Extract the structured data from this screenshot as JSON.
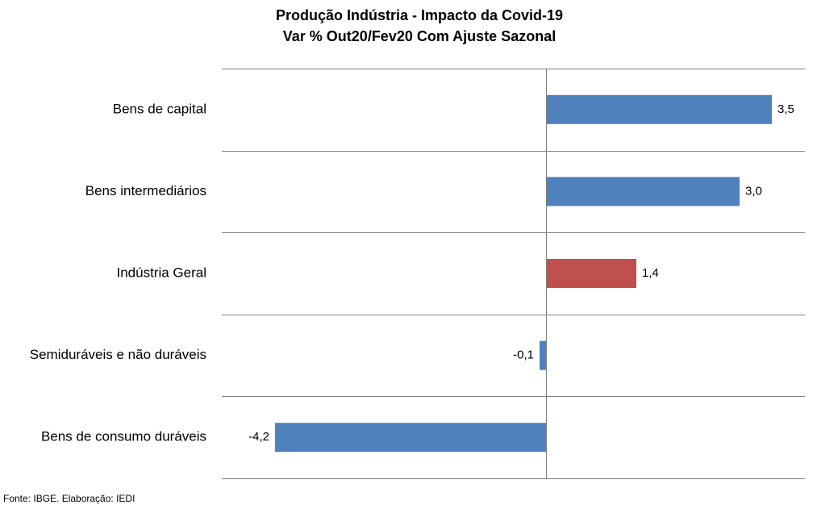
{
  "chart_data": {
    "type": "bar",
    "orientation": "horizontal",
    "title": "Produção Indústria - Impacto da Covid-19",
    "subtitle": "Var % Out20/Fev20 Com Ajuste Sazonal",
    "categories": [
      "Bens de capital",
      "Bens intermediários",
      "Indústria Geral",
      "Semiduráveis e não duráveis",
      "Bens de consumo duráveis"
    ],
    "values": [
      3.5,
      3.0,
      1.4,
      -0.1,
      -4.2
    ],
    "value_labels": [
      "3,5",
      "3,0",
      "1,4",
      "-0,1",
      "-4,2"
    ],
    "xlim": [
      -4.2,
      4.0
    ],
    "grid": true,
    "legend": "none",
    "colors": {
      "default": "#4F81BD",
      "highlight": "#C0504D",
      "highlight_category": "Indústria Geral",
      "gridline": "#808080"
    }
  },
  "source": "Fonte: IBGE. Elaboração: IEDI"
}
